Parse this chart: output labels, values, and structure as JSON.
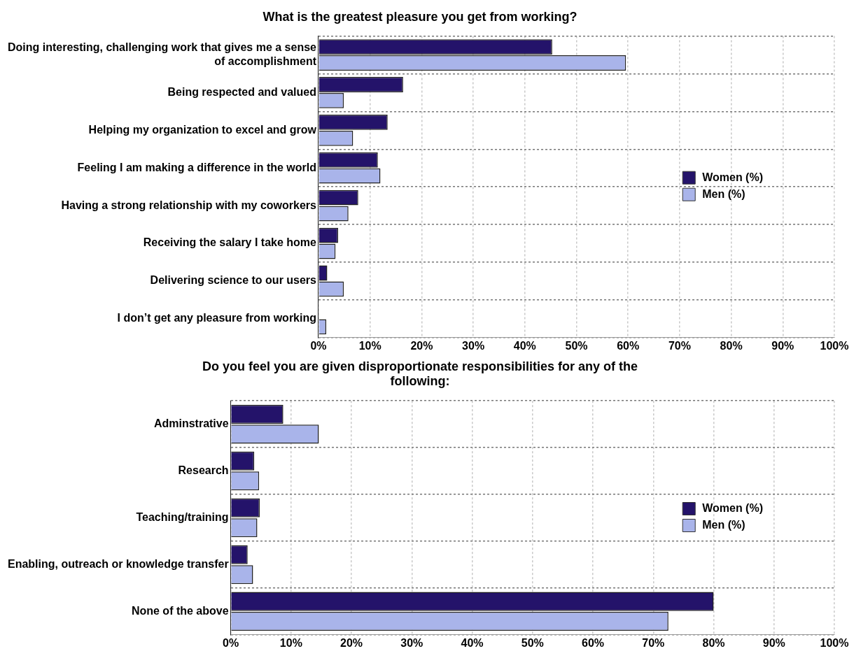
{
  "chart_data": [
    {
      "type": "bar",
      "orientation": "horizontal",
      "title": "What is the greatest pleasure you get from working?",
      "categories": [
        "Doing interesting, challenging work that gives me a sense of accomplishment",
        "Being respected and valued",
        "Helping my organization to excel and grow",
        "Feeling I am making a difference in the world",
        "Having a strong relationship with my coworkers",
        "Receiving the salary I take home",
        "Delivering science to our users",
        "I don’t get any pleasure from working"
      ],
      "series": [
        {
          "name": "Women (%)",
          "color": "#24136a",
          "values": [
            45.3,
            16.4,
            13.4,
            11.5,
            7.7,
            3.8,
            1.7,
            0
          ]
        },
        {
          "name": "Men (%)",
          "color": "#a9b4ea",
          "values": [
            59.6,
            4.9,
            6.7,
            12.0,
            5.8,
            3.3,
            4.9,
            1.5
          ]
        }
      ],
      "xlim": [
        0,
        100
      ],
      "xticks": [
        {
          "value": 0,
          "label": "0%"
        },
        {
          "value": 10,
          "label": "10%"
        },
        {
          "value": 20,
          "label": "20%"
        },
        {
          "value": 30,
          "label": "30%"
        },
        {
          "value": 40,
          "label": "40%"
        },
        {
          "value": 50,
          "label": "50%"
        },
        {
          "value": 60,
          "label": "60%"
        },
        {
          "value": 70,
          "label": "70%"
        },
        {
          "value": 80,
          "label": "80%"
        },
        {
          "value": 90,
          "label": "90%"
        },
        {
          "value": 100,
          "label": "100%"
        }
      ],
      "grid": true,
      "legend": "right"
    },
    {
      "type": "bar",
      "orientation": "horizontal",
      "title": "Do you feel you are given disproportionate responsibilities for any of the following:",
      "categories": [
        "Adminstrative",
        "Research",
        "Teaching/training",
        "Enabling, outreach or knowledge transfer",
        "None of the above"
      ],
      "series": [
        {
          "name": "Women (%)",
          "color": "#24136a",
          "values": [
            8.7,
            3.9,
            4.8,
            2.8,
            80.0
          ]
        },
        {
          "name": "Men (%)",
          "color": "#a9b4ea",
          "values": [
            14.6,
            4.7,
            4.4,
            3.7,
            72.5
          ]
        }
      ],
      "xlim": [
        0,
        100
      ],
      "xticks": [
        {
          "value": 0,
          "label": "0%"
        },
        {
          "value": 10,
          "label": "10%"
        },
        {
          "value": 20,
          "label": "20%"
        },
        {
          "value": 30,
          "label": "30%"
        },
        {
          "value": 40,
          "label": "40%"
        },
        {
          "value": 50,
          "label": "50%"
        },
        {
          "value": 60,
          "label": "60%"
        },
        {
          "value": 70,
          "label": "70%"
        },
        {
          "value": 80,
          "label": "80%"
        },
        {
          "value": 90,
          "label": "90%"
        },
        {
          "value": 100,
          "label": "100%"
        }
      ],
      "grid": true,
      "legend": "right"
    }
  ]
}
